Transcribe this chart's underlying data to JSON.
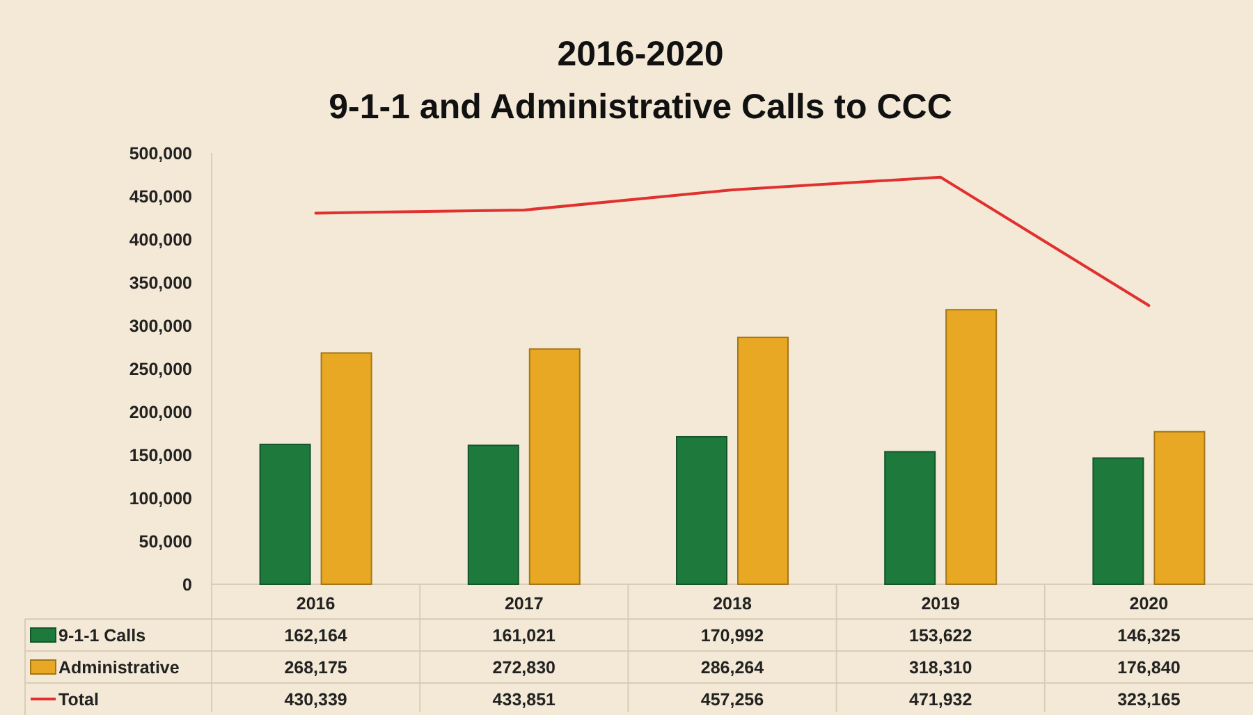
{
  "chart_data": {
    "type": "bar",
    "title": "2016-2020",
    "subtitle": "9-1-1 and Administrative Calls to CCC",
    "categories": [
      "2016",
      "2017",
      "2018",
      "2019",
      "2020"
    ],
    "series": [
      {
        "name": "9-1-1 Calls",
        "color": "#1e7a3c",
        "values": [
          162164,
          161021,
          170992,
          153622,
          146325
        ],
        "value_labels": [
          "162,164",
          "161,021",
          "170,992",
          "153,622",
          "146,325"
        ]
      },
      {
        "name": "Administrative",
        "color": "#e8a824",
        "values": [
          268175,
          272830,
          286264,
          318310,
          176840
        ],
        "value_labels": [
          "268,175",
          "272,830",
          "286,264",
          "318,310",
          "176,840"
        ]
      },
      {
        "name": "Total",
        "type": "line",
        "color": "#e03030",
        "values": [
          430339,
          433851,
          457256,
          471932,
          323165
        ],
        "value_labels": [
          "430,339",
          "433,851",
          "457,256",
          "471,932",
          "323,165"
        ]
      }
    ],
    "ylim": [
      0,
      500000
    ],
    "yticks": [
      {
        "value": 0,
        "label": "0"
      },
      {
        "value": 50000,
        "label": "50,000"
      },
      {
        "value": 100000,
        "label": "100,000"
      },
      {
        "value": 150000,
        "label": "150,000"
      },
      {
        "value": 200000,
        "label": "200,000"
      },
      {
        "value": 250000,
        "label": "250,000"
      },
      {
        "value": 300000,
        "label": "300,000"
      },
      {
        "value": 350000,
        "label": "350,000"
      },
      {
        "value": 400000,
        "label": "400,000"
      },
      {
        "value": 450000,
        "label": "450,000"
      },
      {
        "value": 500000,
        "label": "500,000"
      }
    ],
    "legend": "bottom left",
    "grid": false
  }
}
